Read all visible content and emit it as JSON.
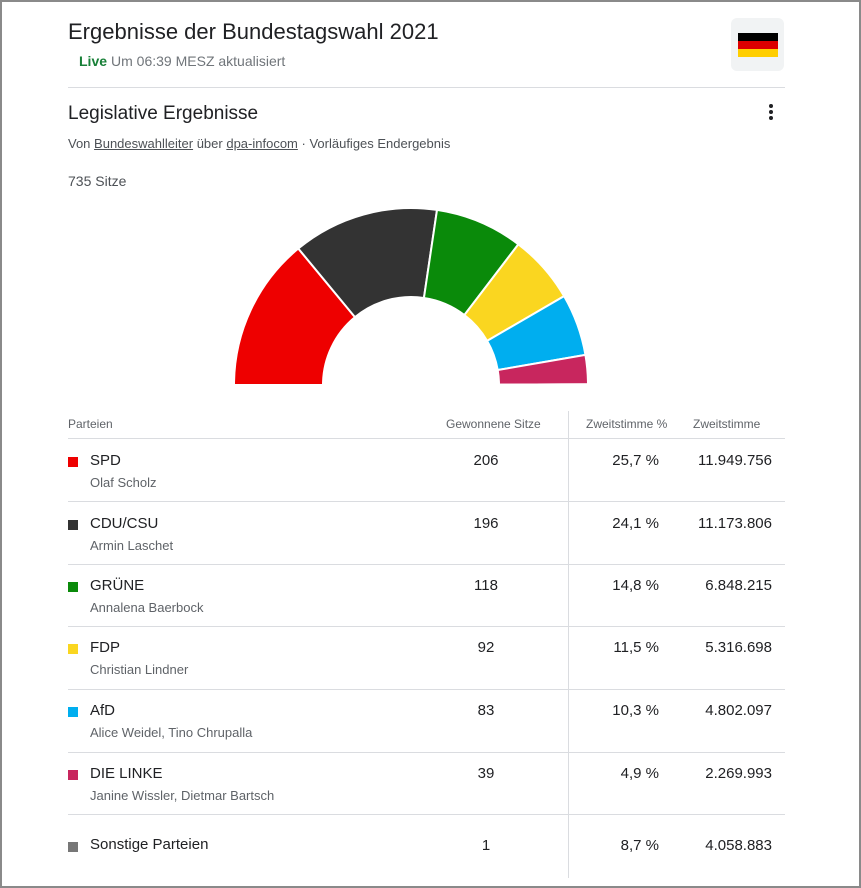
{
  "header": {
    "title": "Ergebnisse der Bundestagswahl 2021",
    "live_label": "Live",
    "updated_text": "Um 06:39 MESZ aktualisiert",
    "flag_colors": [
      "#000000",
      "#dd0000",
      "#ffce00"
    ]
  },
  "section": {
    "title": "Legislative Ergebnisse",
    "source_prefix": "Von",
    "source_link1": "Bundeswahlleiter",
    "source_mid": "über",
    "source_link2": "dpa-infocom",
    "source_suffix": "· Vorläufiges Endergebnis",
    "seats_total": "735 Sitze",
    "menu_icon": "more-vert-icon"
  },
  "table": {
    "headers": {
      "party": "Parteien",
      "seats": "Gewonnene Sitze",
      "pct": "Zweitstimme %",
      "votes": "Zweitstimme"
    },
    "rows": [
      {
        "party": "SPD",
        "leader": "Olaf Scholz",
        "seats": "206",
        "pct": "25,7 %",
        "votes": "11.949.756",
        "color": "#ee0000"
      },
      {
        "party": "CDU/CSU",
        "leader": "Armin Laschet",
        "seats": "196",
        "pct": "24,1 %",
        "votes": "11.173.806",
        "color": "#333333"
      },
      {
        "party": "GRÜNE",
        "leader": "Annalena Baerbock",
        "seats": "118",
        "pct": "14,8 %",
        "votes": "6.848.215",
        "color": "#0a8a0a"
      },
      {
        "party": "FDP",
        "leader": "Christian Lindner",
        "seats": "92",
        "pct": "11,5 %",
        "votes": "5.316.698",
        "color": "#fad620"
      },
      {
        "party": "AfD",
        "leader": "Alice Weidel, Tino Chrupalla",
        "seats": "83",
        "pct": "10,3 %",
        "votes": "4.802.097",
        "color": "#00aeef"
      },
      {
        "party": "DIE LINKE",
        "leader": "Janine Wissler, Dietmar Bartsch",
        "seats": "39",
        "pct": "4,9 %",
        "votes": "2.269.993",
        "color": "#c8265e"
      },
      {
        "party": "Sonstige Parteien",
        "leader": "",
        "seats": "1",
        "pct": "8,7 %",
        "votes": "4.058.883",
        "color": "#777777"
      }
    ]
  },
  "chart_data": {
    "type": "pie",
    "variant": "half-donut",
    "total": 735,
    "categories": [
      "SPD",
      "CDU/CSU",
      "GRÜNE",
      "FDP",
      "AfD",
      "DIE LINKE",
      "Sonstige Parteien"
    ],
    "values": [
      206,
      196,
      118,
      92,
      83,
      39,
      1
    ],
    "colors": [
      "#ee0000",
      "#333333",
      "#0a8a0a",
      "#fad620",
      "#00aeef",
      "#c8265e",
      "#777777"
    ]
  }
}
